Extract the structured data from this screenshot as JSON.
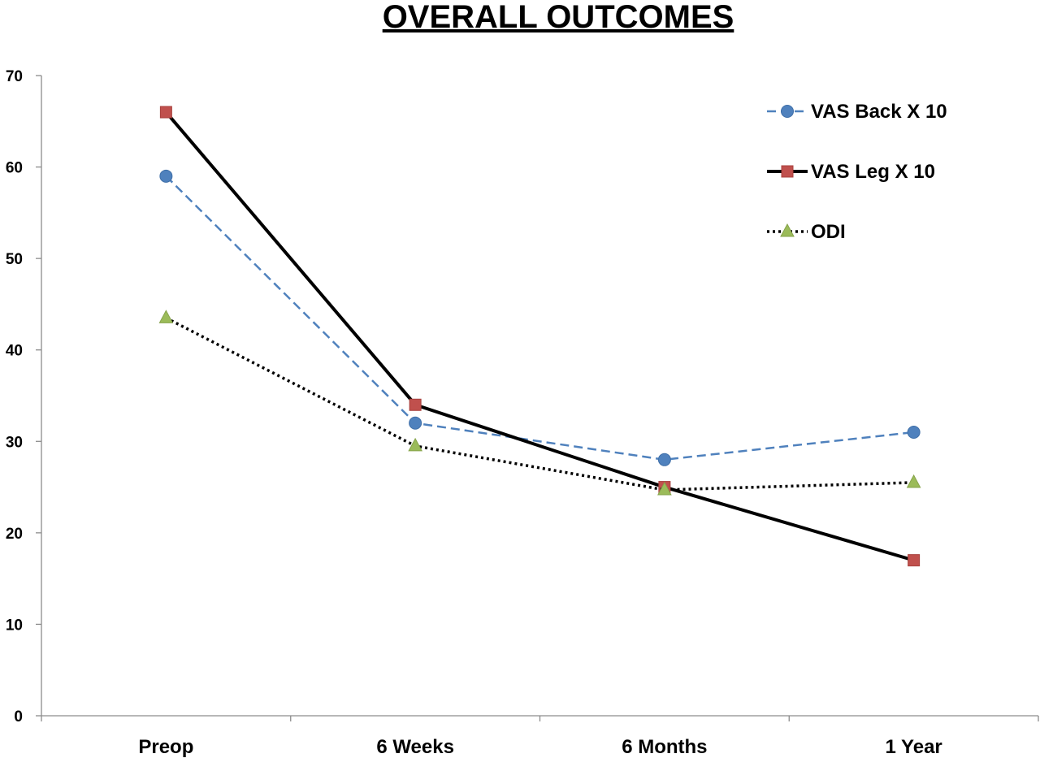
{
  "chart_data": {
    "type": "line",
    "title": "OVERALL OUTCOMES",
    "xlabel": "",
    "ylabel": "",
    "categories": [
      "Preop",
      "6 Weeks",
      "6 Months",
      "1 Year"
    ],
    "ylim": [
      0,
      70
    ],
    "yticks": [
      0,
      10,
      20,
      30,
      40,
      50,
      60,
      70
    ],
    "grid": false,
    "legend_position": "top-right",
    "series": [
      {
        "name": "VAS Back X 10",
        "values": [
          59,
          32,
          28,
          31
        ],
        "color": "#4f81bd",
        "marker": "circle",
        "line_style": "dashed"
      },
      {
        "name": "VAS Leg X 10",
        "values": [
          66,
          34,
          25,
          17
        ],
        "color": "#c0504d",
        "marker": "square",
        "line_style": "solid",
        "line_color": "#000000"
      },
      {
        "name": "ODI",
        "values": [
          43.5,
          29.5,
          24.7,
          25.5
        ],
        "color": "#9bbb59",
        "marker": "triangle",
        "line_style": "dotted",
        "line_color": "#000000"
      }
    ]
  }
}
